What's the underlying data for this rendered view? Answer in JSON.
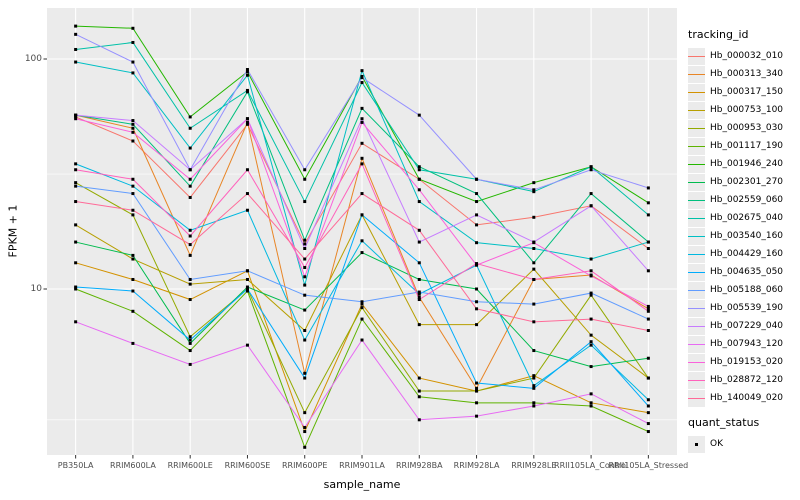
{
  "figure": {
    "y_axis_title": "FPKM + 1",
    "x_axis_title": "sample_name",
    "panel_bg": "#ebebeb",
    "grid_color": "#ffffff",
    "tick_color": "#333333",
    "axis_text_color": "#4d4d4d",
    "legend": {
      "tracking_title": "tracking_id",
      "quant_title": "quant_status",
      "quant_items": [
        {
          "label": "OK",
          "marker": "black-square"
        }
      ],
      "key_bg": "#ebebeb"
    }
  },
  "chart_data": {
    "type": "line",
    "title": "",
    "xlabel": "sample_name",
    "ylabel": "FPKM + 1",
    "y_scale": "log10",
    "ylim": [
      1.9,
      166
    ],
    "grid": true,
    "legend_position": "right",
    "point_marker": "filled-black-square",
    "y_ticks": [
      {
        "value": 100,
        "label": "100"
      },
      {
        "value": 10,
        "label": "10"
      }
    ],
    "y_minor_gridlines": [
      31.6,
      2.7
    ],
    "categories": [
      "PB350LA",
      "RRIM600LA",
      "RRIM600LE",
      "RRIM600SE",
      "RRIM600PE",
      "RRIM901LA",
      "RRIM928BA",
      "RRIM928LA",
      "RRIM928LE",
      "RRII105LA_Control",
      "RRII105LA_Stressed"
    ],
    "series": [
      {
        "name": "Hb_000032_010",
        "color": "#F8766D",
        "values": [
          56,
          44,
          25,
          52,
          15.7,
          43,
          30,
          19,
          20.5,
          23,
          15
        ]
      },
      {
        "name": "Hb_000313_340",
        "color": "#E88526",
        "values": [
          57,
          50,
          14,
          53,
          4.3,
          37,
          9.2,
          3.7,
          11,
          11.5,
          8.2
        ]
      },
      {
        "name": "Hb_000317_150",
        "color": "#D39200",
        "values": [
          13,
          11,
          9,
          12,
          2.4,
          8.6,
          4.1,
          3.6,
          4.2,
          3.2,
          2.9
        ]
      },
      {
        "name": "Hb_000753_100",
        "color": "#B79F00",
        "values": [
          19,
          13.5,
          10.5,
          11,
          6.6,
          21,
          7.0,
          7.0,
          12.2,
          6.3,
          4.1
        ]
      },
      {
        "name": "Hb_000953_030",
        "color": "#93AA00",
        "values": [
          29,
          21,
          6.2,
          10,
          2.9,
          8.3,
          3.6,
          3.6,
          4.1,
          9.4,
          4.1
        ]
      },
      {
        "name": "Hb_001117_190",
        "color": "#5EB300",
        "values": [
          10,
          8,
          5.4,
          9.8,
          2.05,
          7.4,
          3.4,
          3.2,
          3.2,
          3.1,
          2.4
        ]
      },
      {
        "name": "Hb_001946_240",
        "color": "#24B700",
        "values": [
          139,
          136,
          56,
          88,
          30,
          84,
          30,
          24,
          29,
          34,
          23.7
        ]
      },
      {
        "name": "Hb_002301_270",
        "color": "#00BB4E",
        "values": [
          16,
          14,
          5.8,
          10.2,
          8.1,
          14.4,
          11,
          10,
          5.4,
          4.6,
          5.0
        ]
      },
      {
        "name": "Hb_002559_060",
        "color": "#00BF7D",
        "values": [
          57,
          52,
          28,
          72,
          16.3,
          61,
          34,
          26,
          13,
          26,
          16
        ]
      },
      {
        "name": "Hb_002675_040",
        "color": "#00C1A7",
        "values": [
          110,
          118,
          50,
          73,
          24,
          79,
          33,
          30,
          26.5,
          34,
          21
        ]
      },
      {
        "name": "Hb_003540_160",
        "color": "#00BFC4",
        "values": [
          97,
          87,
          41,
          85,
          10.4,
          89,
          24,
          15.9,
          15,
          13.5,
          16
        ]
      },
      {
        "name": "Hb_004429_160",
        "color": "#00B8E0",
        "values": [
          35,
          28,
          18,
          22,
          6.0,
          16.2,
          9.5,
          12.7,
          3.8,
          5.7,
          3.3
        ]
      },
      {
        "name": "Hb_004635_050",
        "color": "#00ACFC",
        "values": [
          10.2,
          9.8,
          6.0,
          10,
          4.1,
          21,
          13,
          3.9,
          3.7,
          5.9,
          3.1
        ]
      },
      {
        "name": "Hb_005188_060",
        "color": "#619CFF",
        "values": [
          28,
          26,
          11,
          12,
          9.4,
          8.8,
          9.7,
          8.8,
          8.6,
          9.6,
          7.4
        ]
      },
      {
        "name": "Hb_005539_190",
        "color": "#9590FF",
        "values": [
          128,
          97,
          33,
          90,
          33,
          83,
          57,
          30,
          27,
          33,
          27.5
        ]
      },
      {
        "name": "Hb_007229_040",
        "color": "#C77CFF",
        "values": [
          57,
          54,
          33,
          55,
          15,
          55,
          16,
          21,
          16,
          23,
          12
        ]
      },
      {
        "name": "Hb_007943_120",
        "color": "#E76BF3",
        "values": [
          7.2,
          5.8,
          4.7,
          5.7,
          2.5,
          6.0,
          2.7,
          2.8,
          3.1,
          3.5,
          2.6
        ]
      },
      {
        "name": "Hb_019153_020",
        "color": "#FA62DB",
        "values": [
          55,
          48,
          30,
          55,
          11.3,
          53,
          27,
          12.7,
          15.9,
          11.4,
          8.4
        ]
      },
      {
        "name": "Hb_028872_120",
        "color": "#FF62BC",
        "values": [
          33,
          30,
          17,
          33,
          12.4,
          35,
          9.0,
          12.9,
          11,
          12,
          8.0
        ]
      },
      {
        "name": "Hb_140049_020",
        "color": "#FF6A98",
        "values": [
          24,
          22,
          15.6,
          26,
          13.5,
          26,
          18,
          8.2,
          7.2,
          7.4,
          6.6
        ]
      }
    ]
  }
}
